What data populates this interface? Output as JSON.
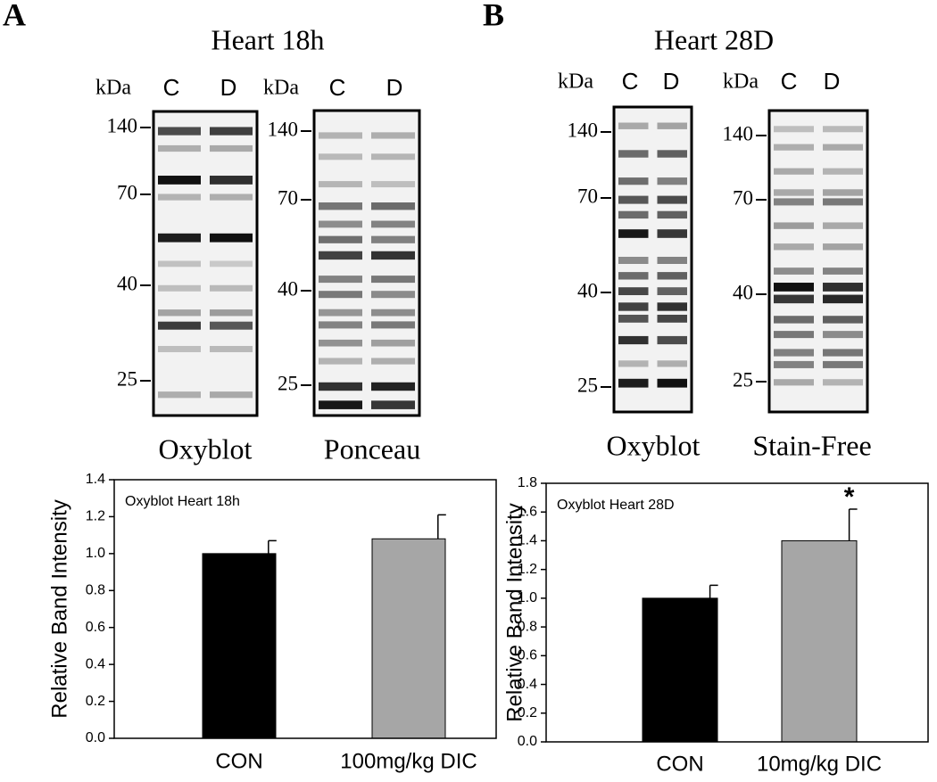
{
  "panels": [
    {
      "label": "A",
      "title": "Heart 18h",
      "blots": [
        {
          "name": "Oxyblot",
          "unit": "kDa",
          "lanes": [
            "C",
            "D"
          ],
          "markers": [
            "140",
            "70",
            "40",
            "25"
          ]
        },
        {
          "name": "Ponceau",
          "unit": "kDa",
          "lanes": [
            "C",
            "D"
          ],
          "markers": [
            "140",
            "70",
            "40",
            "25"
          ]
        }
      ]
    },
    {
      "label": "B",
      "title": "Heart 28D",
      "blots": [
        {
          "name": "Oxyblot",
          "unit": "kDa",
          "lanes": [
            "C",
            "D"
          ],
          "markers": [
            "140",
            "70",
            "40",
            "25"
          ]
        },
        {
          "name": "Stain-Free",
          "unit": "kDa",
          "lanes": [
            "C",
            "D"
          ],
          "markers": [
            "140",
            "70",
            "40",
            "25"
          ]
        }
      ]
    }
  ],
  "chart_data": [
    {
      "type": "bar",
      "title": "Oxyblot Heart 18h",
      "ylabel": "Relative Band Intensity",
      "categories": [
        "CON",
        "100mg/kg DIC"
      ],
      "values": [
        1.0,
        1.08
      ],
      "errors": [
        0.07,
        0.13
      ],
      "colors": [
        "#000000",
        "#a6a6a6"
      ],
      "ylim": [
        0,
        1.4
      ],
      "yticks": [
        {
          "value": 0,
          "label": "0.0"
        },
        0.2,
        0.4,
        0.6,
        0.8,
        {
          "value": 1,
          "label": "1.0"
        },
        1.2,
        1.4
      ]
    },
    {
      "type": "bar",
      "title": "Oxyblot Heart 28D",
      "ylabel": "Relative Band Intensity",
      "categories": [
        "CON",
        "10mg/kg DIC"
      ],
      "values": [
        1.0,
        1.4
      ],
      "errors": [
        0.09,
        0.22
      ],
      "colors": [
        "#000000",
        "#a6a6a6"
      ],
      "ylim": [
        0,
        1.8
      ],
      "annotation": "*",
      "yticks": [
        {
          "value": 0,
          "label": "0.0"
        },
        0.2,
        0.4,
        0.6,
        0.8,
        {
          "value": 1,
          "label": "1.0"
        },
        1.2,
        1.4,
        1.6,
        1.8
      ]
    }
  ]
}
